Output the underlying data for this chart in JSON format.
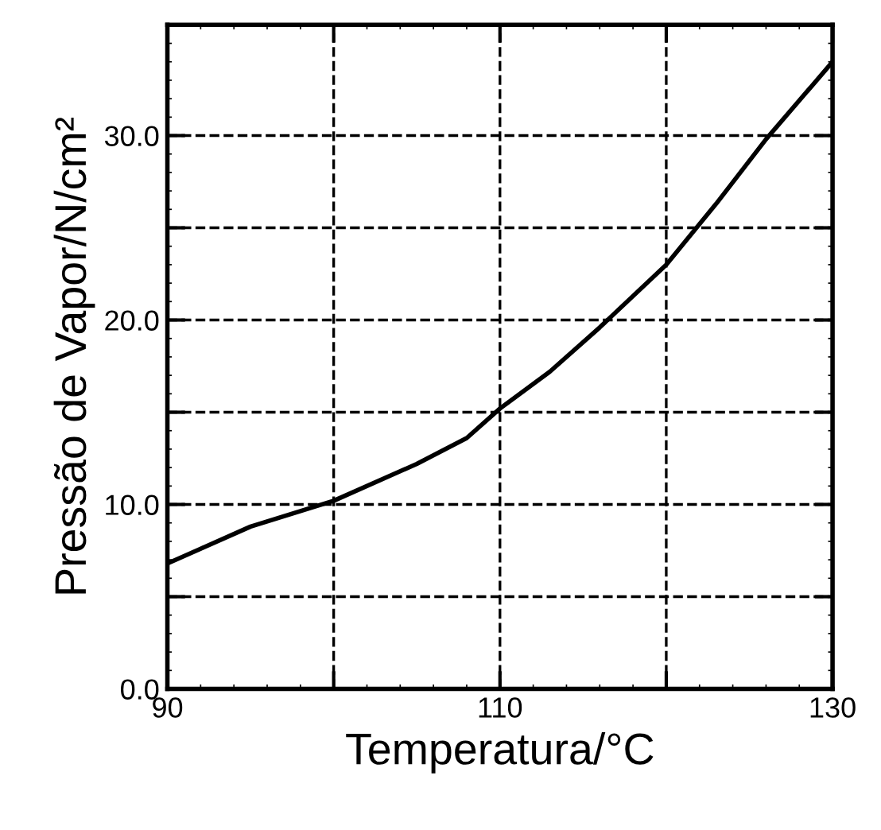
{
  "chart_data": {
    "type": "line",
    "xlabel": "Temperatura/°C",
    "ylabel": "Pressão de Vapor/N/cm²",
    "x": [
      90,
      92,
      95,
      100,
      105,
      108,
      110,
      113,
      116,
      120,
      123,
      126,
      130
    ],
    "series": [
      {
        "color": "#000000",
        "values": [
          6.8,
          7.6,
          8.8,
          10.2,
          12.2,
          13.6,
          15.2,
          17.2,
          19.6,
          23.0,
          26.3,
          29.8,
          34.0
        ]
      }
    ],
    "xlim": [
      90,
      130
    ],
    "xticks": [
      90,
      {
        "value": 100,
        "label": null
      },
      110,
      {
        "value": 120,
        "label": null
      },
      130
    ],
    "ylim": [
      0,
      36
    ],
    "yticks": [
      "0.0",
      {
        "value": 5,
        "label": null
      },
      {
        "value": 10,
        "label": "10.0"
      },
      {
        "value": 15,
        "label": null
      },
      {
        "value": 20,
        "label": "20.0"
      },
      {
        "value": 25,
        "label": null
      },
      {
        "value": 30,
        "label": "30.0"
      }
    ],
    "grid": true,
    "line_style": "solid",
    "marker": "none",
    "legend": false
  }
}
